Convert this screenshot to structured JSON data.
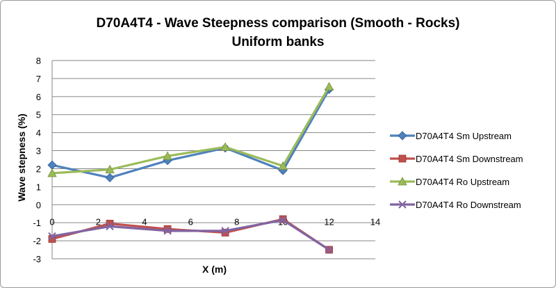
{
  "chart_data": {
    "type": "line",
    "title_lines": [
      "D70A4T4 - Wave Steepness comparison (Smooth - Rocks)",
      "Uniform banks"
    ],
    "xlabel": "X (m)",
    "ylabel": "Wave stepness (%)",
    "xlim": [
      0,
      14
    ],
    "ylim": [
      -3,
      8
    ],
    "xticks": [
      0,
      2,
      4,
      6,
      8,
      10,
      12,
      14
    ],
    "yticks": [
      -3,
      -2,
      -1,
      0,
      1,
      2,
      3,
      4,
      5,
      6,
      7,
      8
    ],
    "grid": "horizontal",
    "legend_position": "right",
    "series": [
      {
        "name": "D70A4T4 Sm Upstream",
        "color": "#4f81bd",
        "marker": "diamond",
        "x": [
          0,
          2.5,
          5,
          7.5,
          10,
          12
        ],
        "y": [
          2.2,
          1.5,
          2.45,
          3.15,
          1.9,
          6.4
        ]
      },
      {
        "name": "D70A4T4 Sm Downstream",
        "color": "#c0504d",
        "marker": "square",
        "x": [
          0,
          2.5,
          5,
          7.5,
          10,
          12
        ],
        "y": [
          -1.9,
          -1.05,
          -1.35,
          -1.55,
          -0.8,
          -2.5
        ]
      },
      {
        "name": "D70A4T4 Ro Upstream",
        "color": "#9bbb59",
        "marker": "triangle",
        "x": [
          0,
          2.5,
          5,
          7.5,
          10,
          12
        ],
        "y": [
          1.75,
          1.95,
          2.7,
          3.2,
          2.15,
          6.55
        ]
      },
      {
        "name": "D70A4T4 Ro Downstream",
        "color": "#8064a2",
        "marker": "x",
        "x": [
          0,
          2.5,
          5,
          7.5,
          10,
          12
        ],
        "y": [
          -1.75,
          -1.2,
          -1.45,
          -1.45,
          -0.85,
          -2.5
        ]
      }
    ]
  }
}
